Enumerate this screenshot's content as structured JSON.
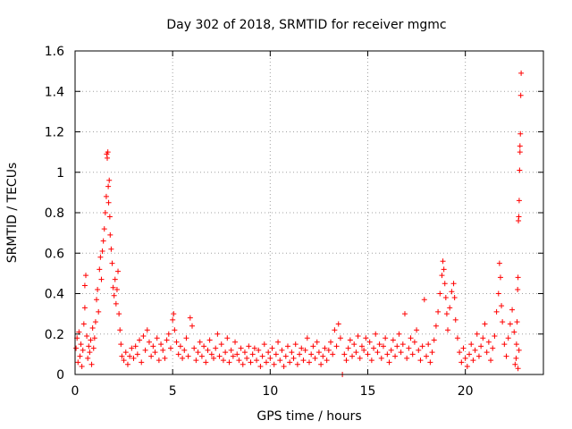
{
  "chart_data": {
    "type": "scatter",
    "title": "Day 302 of 2018, SRMTID for receiver mgmc",
    "xlabel": "GPS time / hours",
    "ylabel": "SRMTID / TECUs",
    "xlim": [
      0,
      24
    ],
    "ylim": [
      0,
      1.6
    ],
    "xticks": [
      0,
      5,
      10,
      15,
      20
    ],
    "yticks": [
      0,
      0.2,
      0.4,
      0.6,
      0.8,
      1,
      1.2,
      1.4,
      1.6
    ],
    "xtick_labels": [
      "0",
      "5",
      "10",
      "15",
      "20"
    ],
    "ytick_labels": [
      "0",
      "0.2",
      "0.4",
      "0.6",
      "0.8",
      "1",
      "1.2",
      "1.4",
      "1.6"
    ],
    "grid": true,
    "marker": "+",
    "color": "#ff0000",
    "series": [
      {
        "name": "SRMTID",
        "points": [
          [
            0.05,
            0.13
          ],
          [
            0.1,
            0.18
          ],
          [
            0.15,
            0.06
          ],
          [
            0.2,
            0.21
          ],
          [
            0.25,
            0.09
          ],
          [
            0.3,
            0.15
          ],
          [
            0.35,
            0.04
          ],
          [
            0.4,
            0.12
          ],
          [
            0.45,
            0.25
          ],
          [
            0.5,
            0.33
          ],
          [
            0.5,
            0.44
          ],
          [
            0.55,
            0.49
          ],
          [
            0.6,
            0.19
          ],
          [
            0.65,
            0.08
          ],
          [
            0.7,
            0.14
          ],
          [
            0.75,
            0.11
          ],
          [
            0.8,
            0.17
          ],
          [
            0.85,
            0.05
          ],
          [
            0.9,
            0.23
          ],
          [
            0.95,
            0.13
          ],
          [
            1.0,
            0.18
          ],
          [
            1.05,
            0.26
          ],
          [
            1.1,
            0.37
          ],
          [
            1.15,
            0.42
          ],
          [
            1.2,
            0.31
          ],
          [
            1.25,
            0.52
          ],
          [
            1.3,
            0.58
          ],
          [
            1.35,
            0.47
          ],
          [
            1.4,
            0.61
          ],
          [
            1.45,
            0.66
          ],
          [
            1.5,
            0.72
          ],
          [
            1.55,
            0.8
          ],
          [
            1.6,
            0.88
          ],
          [
            1.62,
            1.09
          ],
          [
            1.65,
            1.07
          ],
          [
            1.68,
            1.1
          ],
          [
            1.7,
            0.93
          ],
          [
            1.72,
            0.85
          ],
          [
            1.75,
            0.96
          ],
          [
            1.78,
            0.78
          ],
          [
            1.8,
            0.69
          ],
          [
            1.85,
            0.62
          ],
          [
            1.9,
            0.55
          ],
          [
            1.95,
            0.43
          ],
          [
            2.0,
            0.39
          ],
          [
            2.05,
            0.47
          ],
          [
            2.1,
            0.35
          ],
          [
            2.15,
            0.42
          ],
          [
            2.2,
            0.51
          ],
          [
            2.25,
            0.3
          ],
          [
            2.3,
            0.22
          ],
          [
            2.35,
            0.15
          ],
          [
            2.4,
            0.09
          ],
          [
            2.5,
            0.07
          ],
          [
            2.6,
            0.11
          ],
          [
            2.7,
            0.05
          ],
          [
            2.8,
            0.09
          ],
          [
            2.9,
            0.13
          ],
          [
            3.0,
            0.08
          ],
          [
            3.1,
            0.14
          ],
          [
            3.2,
            0.1
          ],
          [
            3.3,
            0.17
          ],
          [
            3.4,
            0.06
          ],
          [
            3.5,
            0.19
          ],
          [
            3.6,
            0.12
          ],
          [
            3.7,
            0.22
          ],
          [
            3.8,
            0.16
          ],
          [
            3.9,
            0.09
          ],
          [
            4.0,
            0.14
          ],
          [
            4.1,
            0.11
          ],
          [
            4.2,
            0.18
          ],
          [
            4.3,
            0.07
          ],
          [
            4.4,
            0.15
          ],
          [
            4.5,
            0.12
          ],
          [
            4.6,
            0.08
          ],
          [
            4.7,
            0.17
          ],
          [
            4.8,
            0.2
          ],
          [
            4.9,
            0.13
          ],
          [
            5.0,
            0.27
          ],
          [
            5.05,
            0.3
          ],
          [
            5.1,
            0.22
          ],
          [
            5.2,
            0.16
          ],
          [
            5.3,
            0.1
          ],
          [
            5.4,
            0.14
          ],
          [
            5.5,
            0.08
          ],
          [
            5.6,
            0.12
          ],
          [
            5.7,
            0.18
          ],
          [
            5.8,
            0.09
          ],
          [
            5.9,
            0.28
          ],
          [
            6.0,
            0.24
          ],
          [
            6.1,
            0.13
          ],
          [
            6.2,
            0.07
          ],
          [
            6.3,
            0.11
          ],
          [
            6.4,
            0.16
          ],
          [
            6.5,
            0.09
          ],
          [
            6.6,
            0.14
          ],
          [
            6.7,
            0.06
          ],
          [
            6.8,
            0.12
          ],
          [
            6.9,
            0.17
          ],
          [
            7.0,
            0.1
          ],
          [
            7.1,
            0.08
          ],
          [
            7.2,
            0.13
          ],
          [
            7.3,
            0.2
          ],
          [
            7.4,
            0.09
          ],
          [
            7.5,
            0.15
          ],
          [
            7.6,
            0.07
          ],
          [
            7.7,
            0.11
          ],
          [
            7.8,
            0.18
          ],
          [
            7.9,
            0.06
          ],
          [
            8.0,
            0.12
          ],
          [
            8.1,
            0.09
          ],
          [
            8.2,
            0.16
          ],
          [
            8.3,
            0.1
          ],
          [
            8.4,
            0.07
          ],
          [
            8.5,
            0.13
          ],
          [
            8.6,
            0.05
          ],
          [
            8.7,
            0.11
          ],
          [
            8.8,
            0.08
          ],
          [
            8.9,
            0.14
          ],
          [
            9.0,
            0.06
          ],
          [
            9.1,
            0.1
          ],
          [
            9.2,
            0.13
          ],
          [
            9.3,
            0.07
          ],
          [
            9.4,
            0.12
          ],
          [
            9.5,
            0.04
          ],
          [
            9.6,
            0.09
          ],
          [
            9.7,
            0.15
          ],
          [
            9.8,
            0.06
          ],
          [
            9.9,
            0.11
          ],
          [
            10.0,
            0.08
          ],
          [
            10.1,
            0.13
          ],
          [
            10.2,
            0.05
          ],
          [
            10.3,
            0.1
          ],
          [
            10.4,
            0.16
          ],
          [
            10.5,
            0.07
          ],
          [
            10.6,
            0.12
          ],
          [
            10.7,
            0.04
          ],
          [
            10.8,
            0.09
          ],
          [
            10.9,
            0.14
          ],
          [
            11.0,
            0.06
          ],
          [
            11.1,
            0.11
          ],
          [
            11.2,
            0.08
          ],
          [
            11.3,
            0.15
          ],
          [
            11.4,
            0.05
          ],
          [
            11.5,
            0.1
          ],
          [
            11.6,
            0.13
          ],
          [
            11.7,
            0.07
          ],
          [
            11.8,
            0.12
          ],
          [
            11.9,
            0.18
          ],
          [
            12.0,
            0.06
          ],
          [
            12.1,
            0.1
          ],
          [
            12.2,
            0.14
          ],
          [
            12.3,
            0.08
          ],
          [
            12.4,
            0.16
          ],
          [
            12.5,
            0.11
          ],
          [
            12.6,
            0.05
          ],
          [
            12.7,
            0.09
          ],
          [
            12.8,
            0.13
          ],
          [
            12.9,
            0.07
          ],
          [
            13.0,
            0.12
          ],
          [
            13.1,
            0.16
          ],
          [
            13.2,
            0.1
          ],
          [
            13.3,
            0.22
          ],
          [
            13.4,
            0.14
          ],
          [
            13.5,
            0.25
          ],
          [
            13.6,
            0.18
          ],
          [
            13.7,
            0.0
          ],
          [
            13.8,
            0.1
          ],
          [
            13.9,
            0.07
          ],
          [
            14.0,
            0.13
          ],
          [
            14.1,
            0.17
          ],
          [
            14.2,
            0.09
          ],
          [
            14.3,
            0.15
          ],
          [
            14.4,
            0.11
          ],
          [
            14.5,
            0.19
          ],
          [
            14.6,
            0.08
          ],
          [
            14.7,
            0.14
          ],
          [
            14.8,
            0.12
          ],
          [
            14.9,
            0.18
          ],
          [
            15.0,
            0.1
          ],
          [
            15.1,
            0.16
          ],
          [
            15.2,
            0.07
          ],
          [
            15.3,
            0.13
          ],
          [
            15.4,
            0.2
          ],
          [
            15.5,
            0.11
          ],
          [
            15.6,
            0.15
          ],
          [
            15.7,
            0.08
          ],
          [
            15.8,
            0.14
          ],
          [
            15.9,
            0.18
          ],
          [
            16.0,
            0.1
          ],
          [
            16.1,
            0.06
          ],
          [
            16.2,
            0.12
          ],
          [
            16.3,
            0.17
          ],
          [
            16.4,
            0.09
          ],
          [
            16.5,
            0.14
          ],
          [
            16.6,
            0.2
          ],
          [
            16.7,
            0.11
          ],
          [
            16.8,
            0.15
          ],
          [
            16.9,
            0.3
          ],
          [
            17.0,
            0.08
          ],
          [
            17.1,
            0.13
          ],
          [
            17.2,
            0.18
          ],
          [
            17.3,
            0.1
          ],
          [
            17.4,
            0.16
          ],
          [
            17.5,
            0.22
          ],
          [
            17.6,
            0.12
          ],
          [
            17.7,
            0.07
          ],
          [
            17.8,
            0.14
          ],
          [
            17.9,
            0.37
          ],
          [
            18.0,
            0.09
          ],
          [
            18.1,
            0.15
          ],
          [
            18.2,
            0.06
          ],
          [
            18.3,
            0.11
          ],
          [
            18.4,
            0.17
          ],
          [
            18.5,
            0.24
          ],
          [
            18.6,
            0.31
          ],
          [
            18.7,
            0.4
          ],
          [
            18.8,
            0.49
          ],
          [
            18.85,
            0.56
          ],
          [
            18.9,
            0.52
          ],
          [
            18.95,
            0.45
          ],
          [
            19.0,
            0.38
          ],
          [
            19.05,
            0.3
          ],
          [
            19.1,
            0.22
          ],
          [
            19.2,
            0.33
          ],
          [
            19.3,
            0.41
          ],
          [
            19.4,
            0.45
          ],
          [
            19.45,
            0.38
          ],
          [
            19.5,
            0.27
          ],
          [
            19.6,
            0.18
          ],
          [
            19.7,
            0.11
          ],
          [
            19.8,
            0.06
          ],
          [
            19.9,
            0.13
          ],
          [
            20.0,
            0.08
          ],
          [
            20.1,
            0.04
          ],
          [
            20.2,
            0.1
          ],
          [
            20.3,
            0.15
          ],
          [
            20.4,
            0.07
          ],
          [
            20.5,
            0.12
          ],
          [
            20.6,
            0.2
          ],
          [
            20.7,
            0.09
          ],
          [
            20.8,
            0.14
          ],
          [
            20.9,
            0.18
          ],
          [
            21.0,
            0.25
          ],
          [
            21.1,
            0.11
          ],
          [
            21.2,
            0.16
          ],
          [
            21.3,
            0.07
          ],
          [
            21.4,
            0.13
          ],
          [
            21.5,
            0.19
          ],
          [
            21.6,
            0.31
          ],
          [
            21.7,
            0.4
          ],
          [
            21.75,
            0.55
          ],
          [
            21.8,
            0.48
          ],
          [
            21.85,
            0.34
          ],
          [
            21.9,
            0.26
          ],
          [
            22.0,
            0.15
          ],
          [
            22.1,
            0.09
          ],
          [
            22.2,
            0.18
          ],
          [
            22.3,
            0.25
          ],
          [
            22.4,
            0.32
          ],
          [
            22.5,
            0.21
          ],
          [
            22.55,
            0.05
          ],
          [
            22.6,
            0.08
          ],
          [
            22.62,
            0.15
          ],
          [
            22.65,
            0.26
          ],
          [
            22.68,
            0.42
          ],
          [
            22.7,
            0.48
          ],
          [
            22.72,
            0.76
          ],
          [
            22.74,
            0.78
          ],
          [
            22.76,
            0.86
          ],
          [
            22.78,
            1.01
          ],
          [
            22.8,
            1.1
          ],
          [
            22.8,
            1.13
          ],
          [
            22.82,
            1.19
          ],
          [
            22.84,
            1.38
          ],
          [
            22.86,
            1.49
          ],
          [
            22.75,
            0.12
          ],
          [
            22.7,
            0.03
          ]
        ]
      }
    ]
  }
}
